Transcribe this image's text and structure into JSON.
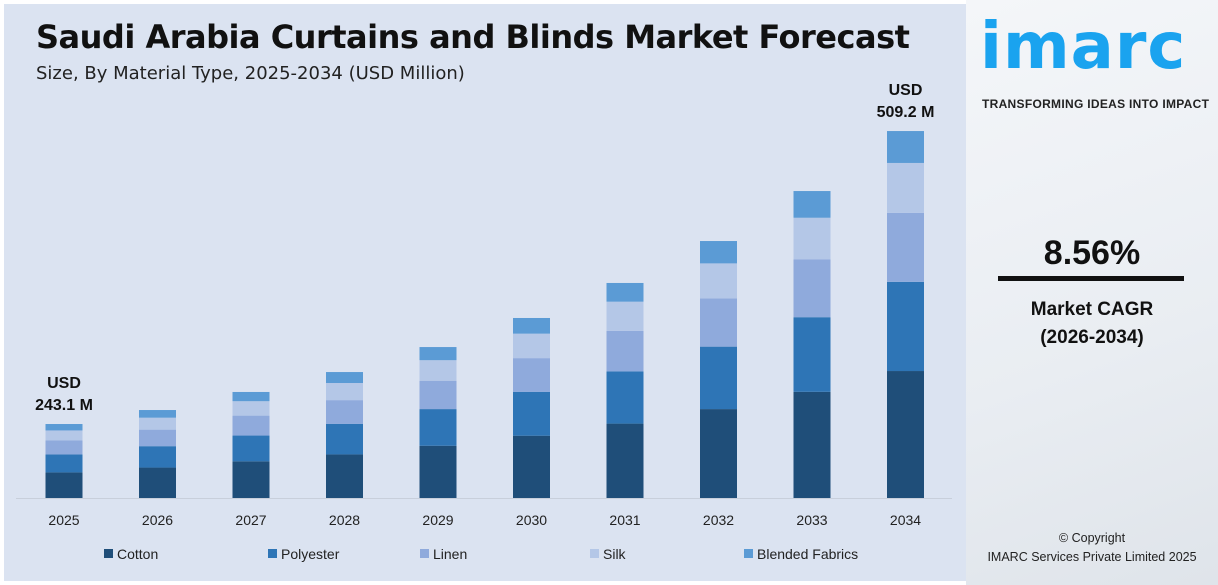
{
  "header": {
    "title": "Saudi Arabia Curtains and Blinds Market Forecast",
    "subtitle": "Size, By Material Type, 2025-2034 (USD Million)"
  },
  "side": {
    "logo": "imarc",
    "tagline": "TRANSFORMING IDEAS INTO IMPACT",
    "cagr_value": "8.56%",
    "cagr_label_1": "Market CAGR",
    "cagr_label_2": "(2026-2034)",
    "copyright_1": "© Copyright",
    "copyright_2": "IMARC Services Private Limited 2025"
  },
  "chart_data": {
    "type": "bar",
    "stacked": true,
    "title": "Saudi Arabia Curtains and Blinds Market Forecast",
    "subtitle": "Size, By Material Type, 2025-2034 (USD Million)",
    "categories": [
      "2025",
      "2026",
      "2027",
      "2028",
      "2029",
      "2030",
      "2031",
      "2032",
      "2033",
      "2034"
    ],
    "totals": [
      243.1,
      255.8,
      272.2,
      290.3,
      313.0,
      339.4,
      371.2,
      409.3,
      454.7,
      509.2
    ],
    "annotations": [
      {
        "category": "2025",
        "line1": "USD",
        "line2": "243.1 M"
      },
      {
        "category": "2034",
        "line1": "USD",
        "line2": "509.2 M"
      }
    ],
    "series": [
      {
        "name": "Cotton",
        "color": "#1f4e79",
        "share": 0.346
      },
      {
        "name": "Polyester",
        "color": "#2e75b6",
        "share": 0.243
      },
      {
        "name": "Linen",
        "color": "#8faadc",
        "share": 0.188
      },
      {
        "name": "Silk",
        "color": "#b4c7e7",
        "share": 0.136
      },
      {
        "name": "Blended Fabrics",
        "color": "#5b9bd5",
        "share": 0.087
      }
    ],
    "legend": "bottom",
    "grid": false
  }
}
